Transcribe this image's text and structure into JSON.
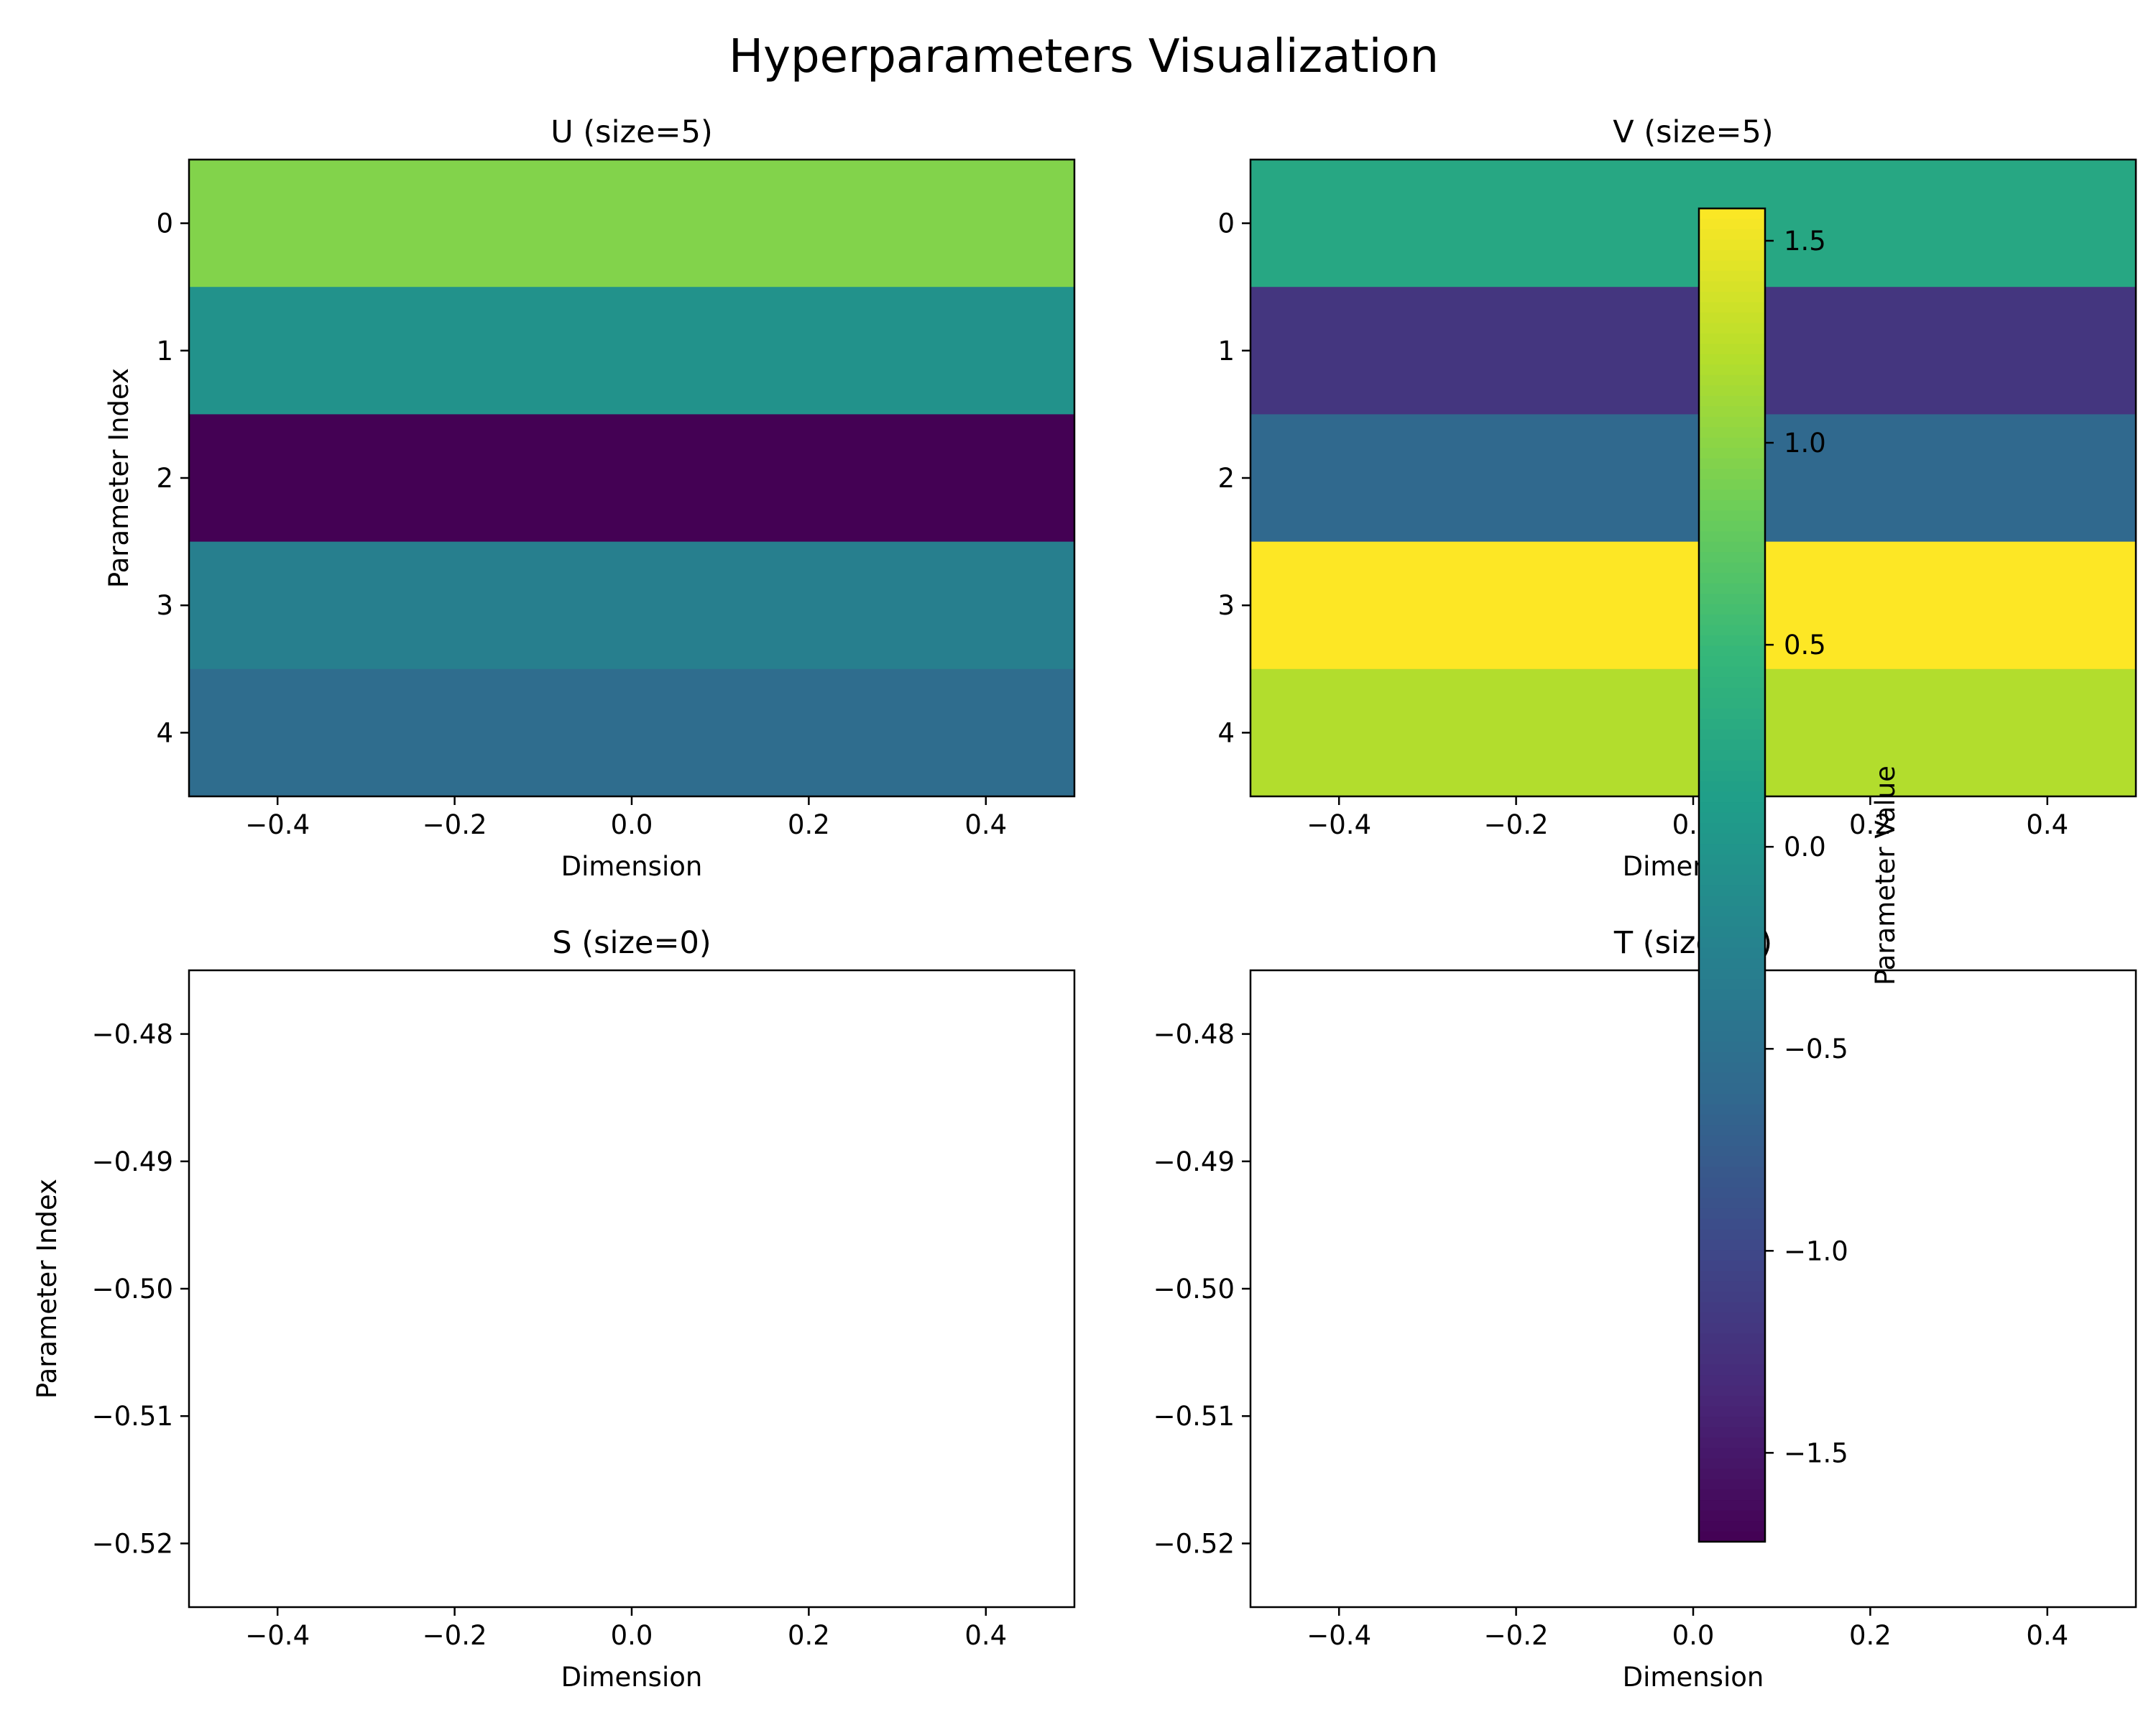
{
  "title": "Hyperparameters Visualization",
  "colormap": "viridis",
  "chart_data": [
    {
      "type": "heatmap",
      "title": "U (size=5)",
      "xlabel": "Dimension",
      "ylabel": "Parameter Index",
      "xlim": [
        -0.5,
        0.5
      ],
      "ylim": [
        4.5,
        -0.5
      ],
      "xticks": [
        -0.4,
        -0.2,
        0.0,
        0.2,
        0.4
      ],
      "xtick_labels": [
        "−0.4",
        "−0.2",
        "0.0",
        "0.2",
        "0.4"
      ],
      "yticks": [
        0,
        1,
        2,
        3,
        4
      ],
      "ytick_labels": [
        "0",
        "1",
        "2",
        "3",
        "4"
      ],
      "rows": [
        0,
        1,
        2,
        3,
        4
      ],
      "values": [
        0.95,
        -0.05,
        -1.72,
        -0.3,
        -0.55
      ],
      "clim": [
        -1.72,
        1.58
      ]
    },
    {
      "type": "heatmap",
      "title": "V (size=5)",
      "xlabel": "Dimension",
      "ylabel": "",
      "xlim": [
        -0.5,
        0.5
      ],
      "ylim": [
        4.5,
        -0.5
      ],
      "xticks": [
        -0.4,
        -0.2,
        0.0,
        0.2,
        0.4
      ],
      "xtick_labels": [
        "−0.4",
        "−0.2",
        "0.0",
        "0.2",
        "0.4"
      ],
      "yticks": [
        0,
        1,
        2,
        3,
        4
      ],
      "ytick_labels": [
        "0",
        "1",
        "2",
        "3",
        "4"
      ],
      "rows": [
        0,
        1,
        2,
        3,
        4
      ],
      "values": [
        0.25,
        -1.2,
        -0.6,
        1.58,
        1.2
      ],
      "clim": [
        -1.72,
        1.58
      ]
    },
    {
      "type": "heatmap",
      "title": "S (size=0)",
      "xlabel": "Dimension",
      "ylabel": "Parameter Index",
      "xlim": [
        -0.5,
        0.5
      ],
      "ylim": [
        -0.525,
        -0.475
      ],
      "xticks": [
        -0.4,
        -0.2,
        0.0,
        0.2,
        0.4
      ],
      "xtick_labels": [
        "−0.4",
        "−0.2",
        "0.0",
        "0.2",
        "0.4"
      ],
      "yticks": [
        -0.48,
        -0.49,
        -0.5,
        -0.51,
        -0.52
      ],
      "ytick_labels": [
        "−0.48",
        "−0.49",
        "−0.50",
        "−0.51",
        "−0.52"
      ],
      "rows": [],
      "values": []
    },
    {
      "type": "heatmap",
      "title": "T (size=0)",
      "xlabel": "Dimension",
      "ylabel": "",
      "xlim": [
        -0.5,
        0.5
      ],
      "ylim": [
        -0.525,
        -0.475
      ],
      "xticks": [
        -0.4,
        -0.2,
        0.0,
        0.2,
        0.4
      ],
      "xtick_labels": [
        "−0.4",
        "−0.2",
        "0.0",
        "0.2",
        "0.4"
      ],
      "yticks": [
        -0.48,
        -0.49,
        -0.5,
        -0.51,
        -0.52
      ],
      "ytick_labels": [
        "−0.48",
        "−0.49",
        "−0.50",
        "−0.51",
        "−0.52"
      ],
      "rows": [],
      "values": []
    }
  ],
  "colorbar": {
    "label": "Parameter Value",
    "range": [
      -1.72,
      1.58
    ],
    "ticks": [
      1.5,
      1.0,
      0.5,
      0.0,
      -0.5,
      -1.0,
      -1.5
    ],
    "tick_labels": [
      "1.5",
      "1.0",
      "0.5",
      "0.0",
      "−0.5",
      "−1.0",
      "−1.5"
    ]
  }
}
